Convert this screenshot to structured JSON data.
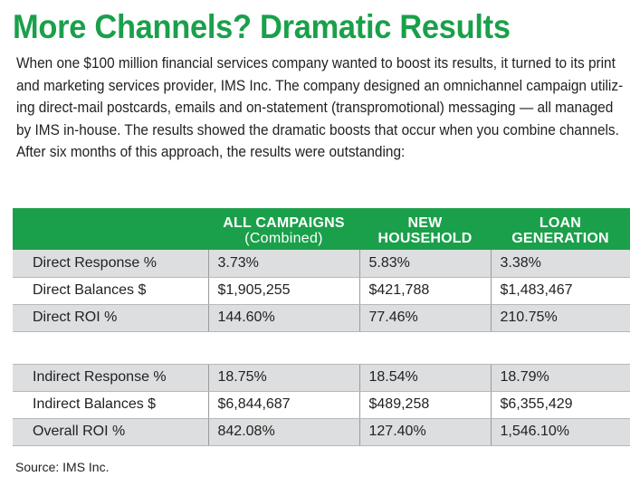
{
  "title": "More Channels? Dramatic Results",
  "intro_lines": [
    "When one $100 million financial services company wanted to boost its results, it turned to its print",
    "and marketing services provider, IMS Inc. The company designed an omnichannel campaign utiliz-",
    "ing direct-mail postcards, emails and on-statement (transpromotional) messaging — all managed",
    "by IMS in-house. The results showed the dramatic boosts that occur when you combine channels.",
    "After six months of this approach, the results were outstanding:"
  ],
  "table": {
    "headers": {
      "all_campaigns": "ALL CAMPAIGNS",
      "all_campaigns_sub": "(Combined)",
      "new_household_1": "NEW",
      "new_household_2": "HOUSEHOLD",
      "loan_generation_1": "LOAN",
      "loan_generation_2": "GENERATION"
    },
    "rows": [
      [
        "Direct Response %",
        "3.73%",
        "5.83%",
        "3.38%"
      ],
      [
        "Direct Balances $",
        "$1,905,255",
        "$421,788",
        "$1,483,467"
      ],
      [
        "Direct ROI %",
        "144.60%",
        "77.46%",
        "210.75%"
      ],
      [
        "Indirect Response %",
        "18.75%",
        "18.54%",
        "18.79%"
      ],
      [
        "Indirect Balances $",
        "$6,844,687",
        "$489,258",
        "$6,355,429"
      ],
      [
        "Overall ROI %",
        "842.08%",
        "127.40%",
        "1,546.10%"
      ]
    ]
  },
  "source": "Source: IMS Inc.",
  "colors": {
    "accent": "#1aa04a",
    "row_shade": "#dcdedf"
  }
}
